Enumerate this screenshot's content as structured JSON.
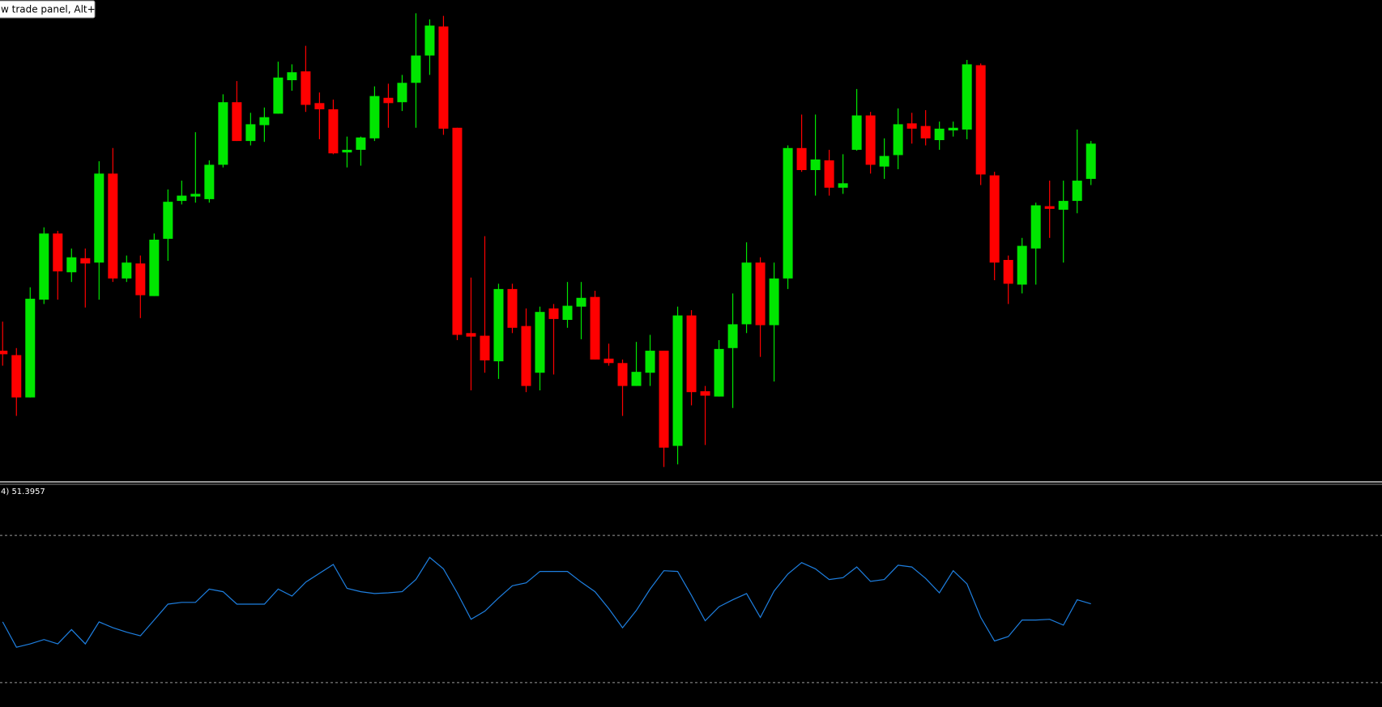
{
  "tooltip": "w trade panel, Alt+T",
  "indicator_label": "4) 51.3957",
  "chart_data": [
    {
      "type": "candlestick",
      "open": [
        152,
        147,
        99,
        210,
        285,
        241,
        257,
        252,
        353,
        234,
        251,
        214,
        279,
        322,
        327,
        324,
        363,
        434,
        390,
        408,
        421,
        459,
        469,
        433,
        426,
        377,
        380,
        393,
        439,
        434,
        456,
        487,
        520,
        405,
        172,
        169,
        140,
        222,
        180,
        127,
        200,
        187,
        202,
        213,
        143,
        138,
        112,
        127,
        152,
        44,
        192,
        106,
        100,
        155,
        182,
        252,
        181,
        234,
        382,
        357,
        368,
        337,
        380,
        419,
        361,
        374,
        410,
        407,
        391,
        402,
        403,
        476,
        351,
        255,
        227,
        268,
        316,
        312,
        322,
        347
      ],
      "high": [
        185,
        155,
        224,
        292,
        288,
        268,
        268,
        367,
        382,
        260,
        260,
        285,
        335,
        345,
        400,
        368,
        443,
        458,
        422,
        428,
        480,
        477,
        498,
        445,
        437,
        395,
        395,
        452,
        455,
        465,
        535,
        528,
        532,
        405,
        235,
        282,
        228,
        228,
        200,
        202,
        205,
        230,
        230,
        220,
        160,
        142,
        162,
        170,
        152,
        202,
        198,
        112,
        164,
        217,
        275,
        258,
        252,
        385,
        420,
        420,
        380,
        375,
        449,
        423,
        393,
        427,
        422,
        425,
        412,
        412,
        482,
        478,
        355,
        260,
        280,
        320,
        345,
        345,
        403,
        390
      ],
      "low": [
        135,
        78,
        99,
        205,
        210,
        230,
        201,
        210,
        230,
        230,
        189,
        214,
        254,
        318,
        320,
        320,
        360,
        390,
        385,
        389,
        421,
        447,
        423,
        392,
        375,
        360,
        362,
        390,
        405,
        424,
        405,
        465,
        397,
        164,
        107,
        127,
        120,
        172,
        105,
        107,
        125,
        178,
        165,
        142,
        135,
        78,
        112,
        112,
        20,
        23,
        90,
        45,
        100,
        87,
        172,
        145,
        117,
        222,
        355,
        328,
        328,
        330,
        379,
        353,
        347,
        358,
        387,
        385,
        380,
        395,
        392,
        340,
        232,
        205,
        217,
        227,
        280,
        252,
        308,
        340
      ],
      "close": [
        148,
        99,
        211,
        285,
        242,
        258,
        251,
        353,
        234,
        252,
        215,
        278,
        321,
        328,
        330,
        363,
        434,
        390,
        409,
        417,
        462,
        468,
        431,
        426,
        376,
        380,
        394,
        441,
        433,
        456,
        487,
        521,
        404,
        170,
        168,
        141,
        222,
        178,
        112,
        196,
        188,
        203,
        212,
        142,
        138,
        112,
        128,
        152,
        42,
        192,
        105,
        101,
        154,
        182,
        252,
        181,
        234,
        382,
        357,
        369,
        337,
        342,
        419,
        363,
        373,
        409,
        404,
        393,
        404,
        405,
        477,
        352,
        252,
        228,
        271,
        317,
        313,
        322,
        345,
        387
      ],
      "ylim": [
        5,
        550
      ],
      "up_color": "#00e600",
      "down_color": "#ff0000"
    },
    {
      "type": "line",
      "values": [
        46.5,
        39.6,
        40.5,
        41.7,
        40.5,
        44.4,
        40.5,
        46.5,
        44.9,
        43.7,
        42.7,
        47.0,
        51.3,
        51.8,
        51.8,
        55.4,
        54.7,
        51.3,
        51.3,
        51.3,
        55.4,
        53.5,
        57.3,
        59.7,
        62.1,
        55.6,
        54.7,
        54.2,
        54.4,
        54.7,
        58.0,
        64.0,
        60.9,
        54.4,
        47.2,
        49.4,
        53.0,
        56.3,
        57.1,
        60.2,
        60.2,
        60.2,
        57.3,
        54.7,
        50.1,
        44.9,
        49.6,
        55.4,
        60.4,
        60.2,
        53.7,
        46.8,
        50.6,
        52.5,
        54.2,
        47.7,
        54.9,
        59.5,
        62.6,
        60.9,
        58.0,
        58.5,
        61.4,
        57.5,
        58.0,
        61.9,
        61.4,
        58.3,
        54.4,
        60.4,
        56.8,
        47.7,
        41.3,
        42.5,
        47.0,
        47.0,
        47.2,
        45.6,
        52.5,
        51.3957
      ],
      "ylim": [
        23.8,
        84.1
      ],
      "levels": [
        70,
        30
      ],
      "color": "#1e7fe0"
    }
  ]
}
